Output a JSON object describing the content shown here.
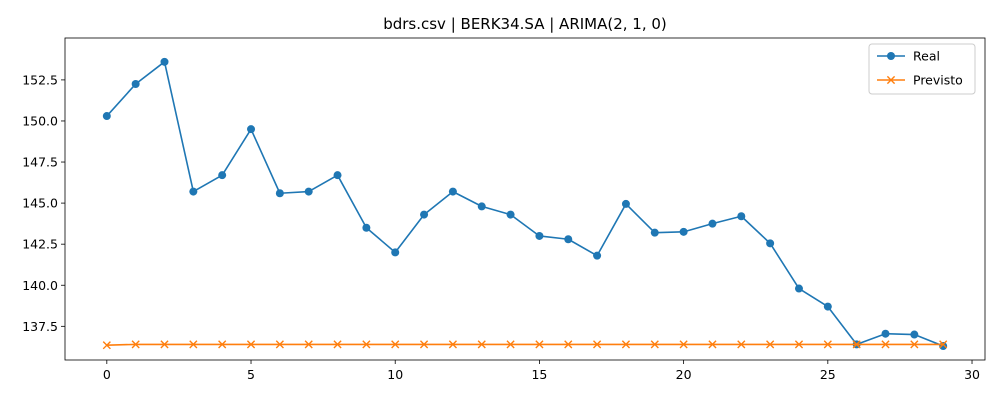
{
  "chart_data": {
    "type": "line",
    "title": "bdrs.csv | BERK34.SA | ARIMA(2, 1, 0)",
    "xlabel": "",
    "ylabel": "",
    "xlim": [
      -1.45,
      30.45
    ],
    "ylim": [
      135.45,
      155.05
    ],
    "xticks": [
      0,
      5,
      10,
      15,
      20,
      25,
      30
    ],
    "xtick_labels": [
      "0",
      "5",
      "10",
      "15",
      "20",
      "25",
      "30"
    ],
    "yticks": [
      137.5,
      140.0,
      142.5,
      145.0,
      147.5,
      150.0,
      152.5
    ],
    "ytick_labels": [
      "137.5",
      "140.0",
      "142.5",
      "145.0",
      "147.5",
      "150.0",
      "152.5"
    ],
    "grid": false,
    "legend_position": "top-right",
    "x": [
      0,
      1,
      2,
      3,
      4,
      5,
      6,
      7,
      8,
      9,
      10,
      11,
      12,
      13,
      14,
      15,
      16,
      17,
      18,
      19,
      20,
      21,
      22,
      23,
      24,
      25,
      26,
      27,
      28,
      29
    ],
    "series": [
      {
        "name": "Real",
        "color": "#1f77b4",
        "marker": "circle",
        "values": [
          150.3,
          152.25,
          153.6,
          145.7,
          146.7,
          149.5,
          145.6,
          145.7,
          146.7,
          143.5,
          142.0,
          144.3,
          145.7,
          144.8,
          144.3,
          143.0,
          142.8,
          141.8,
          144.95,
          143.2,
          143.25,
          143.75,
          144.2,
          142.55,
          139.8,
          138.7,
          136.4,
          137.05,
          137.0,
          136.3
        ]
      },
      {
        "name": "Previsto",
        "color": "#ff7f0e",
        "marker": "x",
        "values": [
          136.35,
          136.4,
          136.4,
          136.4,
          136.4,
          136.4,
          136.4,
          136.4,
          136.4,
          136.4,
          136.4,
          136.4,
          136.4,
          136.4,
          136.4,
          136.4,
          136.4,
          136.4,
          136.4,
          136.4,
          136.4,
          136.4,
          136.4,
          136.4,
          136.4,
          136.4,
          136.4,
          136.4,
          136.4,
          136.4
        ]
      }
    ]
  }
}
